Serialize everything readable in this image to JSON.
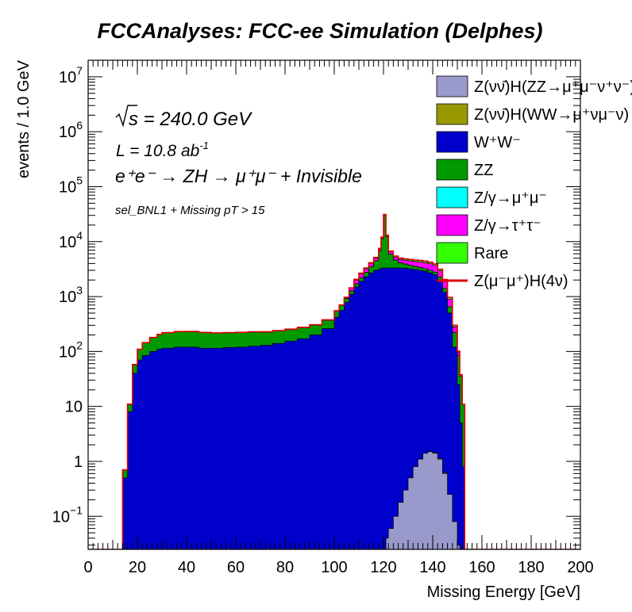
{
  "chart_data": {
    "type": "area",
    "title": "FCCAnalyses: FCC-ee Simulation (Delphes)",
    "xlabel": "Missing Energy [GeV]",
    "ylabel": "events / 1.0 GeV",
    "xlim": [
      0,
      200
    ],
    "ylim": [
      0.025,
      20000000
    ],
    "yscale": "log",
    "x_ticks": [
      "0",
      "20",
      "40",
      "60",
      "80",
      "100",
      "120",
      "140",
      "160",
      "180",
      "200"
    ],
    "y_ticks": [
      {
        "base": "10",
        "exp": "−1"
      },
      {
        "base": "1",
        "exp": ""
      },
      {
        "base": "10",
        "exp": ""
      },
      {
        "base": "10",
        "exp": "2"
      },
      {
        "base": "10",
        "exp": "3"
      },
      {
        "base": "10",
        "exp": "4"
      },
      {
        "base": "10",
        "exp": "5"
      },
      {
        "base": "10",
        "exp": "6"
      },
      {
        "base": "10",
        "exp": "7"
      }
    ],
    "annotations": {
      "sqrt_s": "s = 240.0 GeV",
      "lumi": "L = 10.8 ab",
      "lumi_exp": "-1",
      "process": "e⁺e⁻ → ZH → μ⁺μ⁻ + Invisible",
      "selection": "sel_BNL1 + Missing pT > 15"
    },
    "legend_position": "top-right",
    "x": [
      8,
      10,
      12,
      14,
      16,
      18,
      20,
      22,
      25,
      28,
      30,
      35,
      40,
      45,
      50,
      55,
      60,
      65,
      70,
      75,
      80,
      85,
      90,
      95,
      100,
      102,
      104,
      106,
      108,
      110,
      112,
      114,
      116,
      118,
      119,
      120,
      121,
      122,
      124,
      126,
      128,
      130,
      132,
      134,
      136,
      138,
      140,
      142,
      144,
      146,
      148,
      150,
      151,
      152,
      153,
      154,
      200
    ],
    "series": [
      {
        "name": "Z(νν̄)H(ZZ→μ⁺μ⁻ν⁺ν⁻)",
        "color": "#9999cc",
        "values": [
          0,
          0,
          0,
          0,
          0,
          0,
          0,
          0,
          0,
          0,
          0,
          0,
          0,
          0,
          0,
          0,
          0,
          0,
          0,
          0,
          0,
          0,
          0,
          0,
          0,
          0,
          0,
          0,
          0,
          0,
          0,
          0,
          0,
          0,
          0,
          0.02,
          0.04,
          0.06,
          0.1,
          0.18,
          0.3,
          0.5,
          0.8,
          1.1,
          1.4,
          1.5,
          1.4,
          1.1,
          0.6,
          0.25,
          0.08,
          0.03,
          0,
          0,
          0,
          0,
          0
        ]
      },
      {
        "name": "Z(νν̄)H(WW→μ⁺νμ⁻ν)",
        "color": "#999900",
        "values": [
          0,
          0,
          0,
          0,
          0,
          0,
          0,
          0,
          0,
          0,
          0,
          0,
          0,
          0,
          0,
          0,
          0,
          0,
          0,
          0,
          0,
          0,
          0,
          0,
          0,
          0,
          0,
          0,
          0,
          0,
          0,
          0,
          0,
          0,
          0,
          0,
          0,
          0,
          0,
          0,
          0,
          0,
          0,
          0,
          0,
          0.03,
          0.04,
          0.03,
          0.02,
          0,
          0,
          0,
          0,
          0,
          0,
          0,
          0
        ]
      },
      {
        "name": "W⁺W⁻",
        "color": "#0000cc",
        "values": [
          0,
          0,
          0,
          0.5,
          8,
          40,
          70,
          85,
          100,
          110,
          115,
          120,
          120,
          115,
          115,
          118,
          120,
          125,
          130,
          140,
          155,
          170,
          200,
          260,
          420,
          560,
          780,
          1100,
          1500,
          1900,
          2300,
          2700,
          3000,
          3200,
          3300,
          3300,
          3300,
          3300,
          3300,
          3300,
          3300,
          3200,
          3100,
          3000,
          2900,
          2700,
          2500,
          2000,
          1200,
          500,
          120,
          25,
          5,
          0.8,
          0,
          0,
          0
        ]
      },
      {
        "name": "ZZ",
        "color": "#009900",
        "values": [
          0,
          0,
          0,
          0.2,
          3,
          18,
          40,
          60,
          80,
          95,
          105,
          110,
          110,
          105,
          100,
          100,
          100,
          100,
          95,
          95,
          95,
          100,
          100,
          110,
          120,
          130,
          140,
          160,
          200,
          280,
          450,
          800,
          1500,
          3600,
          8000,
          27000,
          9000,
          2600,
          1300,
          800,
          600,
          500,
          430,
          380,
          330,
          300,
          280,
          250,
          200,
          150,
          100,
          60,
          30,
          10,
          0,
          0,
          0
        ]
      },
      {
        "name": "Z/γ→μ⁺μ⁻",
        "color": "#00ffff",
        "values": [
          0,
          0,
          0,
          0,
          0,
          0,
          0,
          0,
          0,
          0,
          0,
          0,
          0,
          0,
          0,
          0,
          0,
          0,
          0,
          0,
          0,
          0,
          0,
          0,
          0,
          0,
          0,
          0,
          0,
          0,
          0,
          0,
          0,
          0,
          0,
          0,
          0,
          0,
          0,
          0,
          0,
          0,
          0,
          0,
          0,
          0,
          0,
          0,
          0,
          0,
          0,
          0,
          0,
          0,
          0,
          0,
          0
        ]
      },
      {
        "name": "Z/γ→τ⁺τ⁻",
        "color": "#ff00ff",
        "values": [
          0,
          0,
          0,
          0,
          0,
          0,
          0,
          0,
          0,
          0,
          0.3,
          1,
          2,
          2.5,
          3,
          3,
          3.5,
          3.5,
          4,
          4,
          5,
          5,
          6,
          7,
          9,
          12,
          40,
          150,
          300,
          400,
          450,
          500,
          500,
          550,
          600,
          600,
          600,
          600,
          630,
          660,
          700,
          750,
          800,
          850,
          900,
          950,
          900,
          700,
          500,
          250,
          60,
          12,
          2,
          0,
          0,
          0,
          0
        ]
      },
      {
        "name": "Rare",
        "color": "#33ff00",
        "values": [
          0,
          0,
          0,
          0,
          0,
          0,
          0,
          0,
          0,
          0,
          0,
          0,
          0,
          0,
          0,
          0,
          0.05,
          0.1,
          0.15,
          0.2,
          0.2,
          0.25,
          0.3,
          0.4,
          0.6,
          1,
          5,
          25,
          60,
          90,
          110,
          130,
          150,
          170,
          180,
          190,
          200,
          210,
          230,
          250,
          260,
          280,
          290,
          295,
          300,
          290,
          250,
          200,
          140,
          70,
          20,
          4,
          0.8,
          0.1,
          0,
          0,
          0
        ]
      },
      {
        "name": "Z(μ⁻μ⁺)H(4ν)",
        "color": "#dd0000",
        "style": "line",
        "values": [
          0,
          0,
          0,
          0,
          0,
          0,
          0,
          0,
          0,
          0,
          0,
          0,
          0,
          0,
          0,
          0,
          0,
          0,
          0,
          0,
          0,
          0,
          0,
          0,
          0,
          0,
          0,
          0,
          0,
          0,
          0,
          0,
          0,
          0,
          0,
          0,
          0,
          0,
          0,
          0,
          0,
          0,
          0,
          0,
          0,
          0,
          0,
          0,
          0,
          0,
          0,
          0,
          0,
          0,
          0,
          0,
          0
        ]
      }
    ]
  },
  "legend_entries": [
    "Z(νν̄)H(ZZ→μ⁺μ⁻ν⁺ν⁻)",
    "Z(νν̄)H(WW→μ⁺νμ⁻ν)",
    "W⁺W⁻",
    "ZZ",
    "Z/γ→μ⁺μ⁻",
    "Z/γ→τ⁺τ⁻",
    "Rare",
    "Z(μ⁻μ⁺)H(4ν)"
  ]
}
